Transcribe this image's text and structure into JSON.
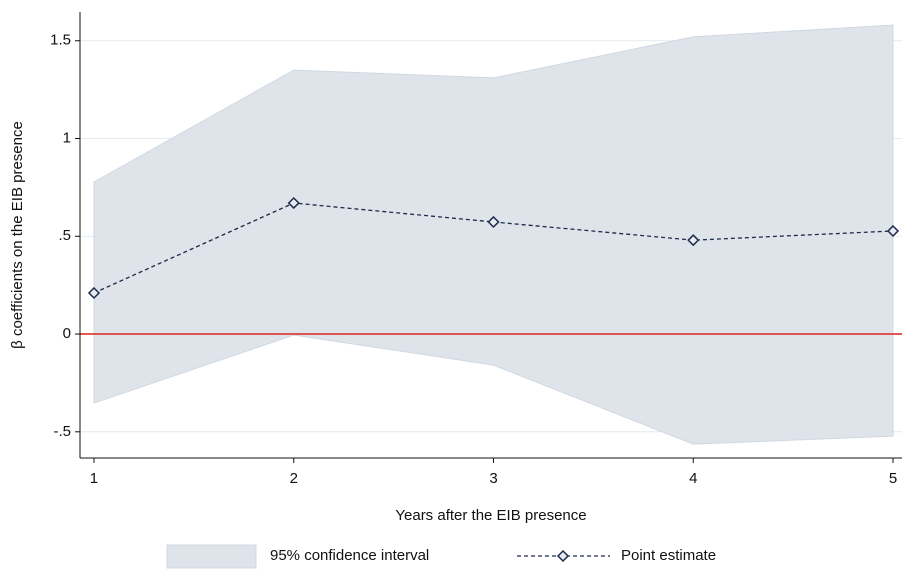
{
  "chart_data": {
    "type": "line",
    "x_label": "Years after the EIB presence",
    "y_label": "β coefficients on the EIB presence",
    "x": [
      1,
      2,
      3,
      4,
      5
    ],
    "series": [
      {
        "name": "95% confidence interval",
        "type": "band",
        "color": "#dfe4ea",
        "lower": [
          -0.353,
          -0.005,
          -0.159,
          -0.563,
          -0.522
        ],
        "upper": [
          0.777,
          1.35,
          1.31,
          1.52,
          1.58
        ]
      },
      {
        "name": "Point estimate",
        "type": "line",
        "color": "#1c2b4d",
        "values": [
          0.21,
          0.67,
          0.573,
          0.48,
          0.527
        ]
      }
    ],
    "xlim": [
      0.93,
      5.045
    ],
    "ylim": [
      -0.634,
      1.647
    ],
    "xticks": [
      1,
      2,
      3,
      4,
      5
    ],
    "yticks": [
      {
        "value": -0.5,
        "label": "-.5"
      },
      0,
      {
        "value": 0.5,
        "label": ".5"
      },
      1,
      1.5
    ],
    "grid": true,
    "hline": 0,
    "hline_color": "#e0403a",
    "legend": "bottom"
  }
}
